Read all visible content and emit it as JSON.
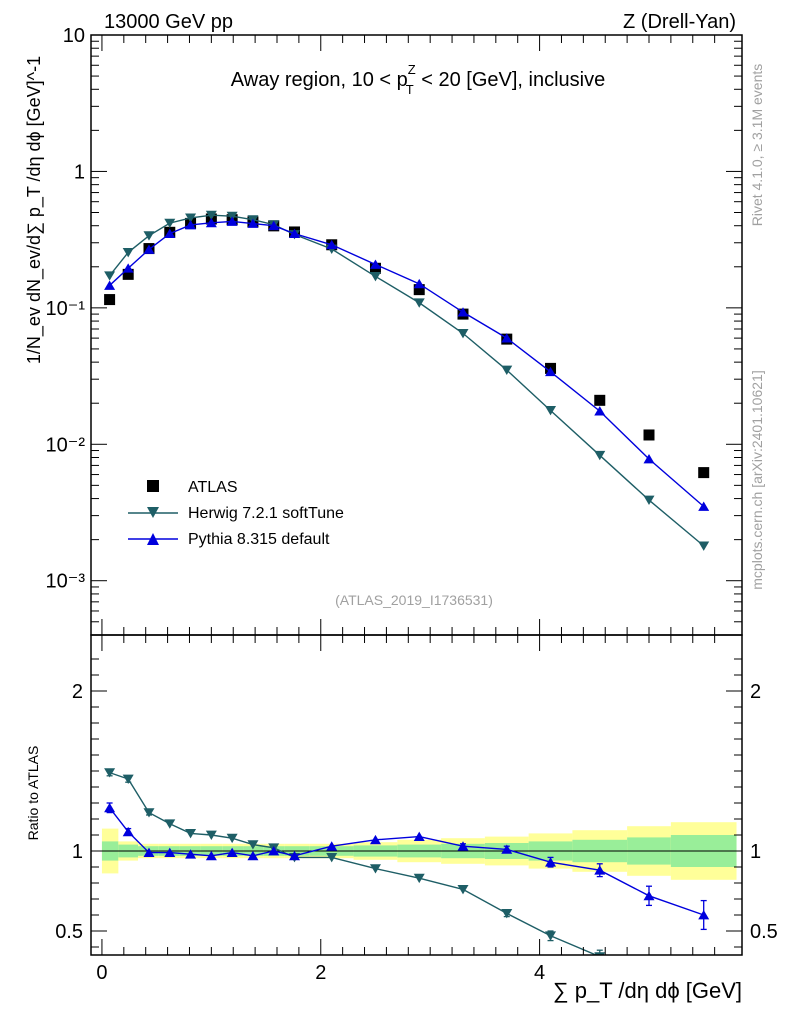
{
  "header": {
    "left": "13000 GeV pp",
    "right": "Z (Drell-Yan)"
  },
  "side_labels": {
    "rivet": "Rivet 4.1.0, ≥ 3.1M events",
    "mcplots": "mcplots.cern.ch [arXiv:2401.10621]"
  },
  "analysis_id": "(ATLAS_2019_I1736531)",
  "colors": {
    "atlas": "#000000",
    "herwig": "#1e5e66",
    "pythia": "#0000dd",
    "band_inner": "#99ee99",
    "band_outer": "#ffff99"
  },
  "chart_data": [
    {
      "type": "scatter",
      "title": "Away region, 10 < p_T^Z < 20 [GeV], inclusive",
      "title_parts": {
        "pre": "Away region, 10 < p",
        "sub": "T",
        "sup": "Z",
        "post": " < 20 [GeV], inclusive"
      },
      "xlabel": "∑ p_T /dη dϕ [GeV]",
      "ylabel": "1/N_ev dN_ev/d∑ p_T /dη dϕ [GeV]^-1",
      "yscale": "log",
      "ylim": [
        0.0004,
        10
      ],
      "xlim": [
        -0.1,
        5.85
      ],
      "y_ticks": [
        "10⁻³",
        "10⁻²",
        "10⁻¹",
        "1",
        "10"
      ],
      "legend_position": "bottom-left",
      "series": [
        {
          "name": "ATLAS",
          "marker": "square",
          "x": [
            0.07,
            0.24,
            0.43,
            0.62,
            0.81,
            1.0,
            1.19,
            1.38,
            1.57,
            1.76,
            2.1,
            2.5,
            2.9,
            3.3,
            3.7,
            4.1,
            4.55,
            5.0,
            5.5
          ],
          "y": [
            0.115,
            0.176,
            0.272,
            0.358,
            0.416,
            0.448,
            0.443,
            0.427,
            0.399,
            0.36,
            0.29,
            0.195,
            0.136,
            0.09,
            0.059,
            0.036,
            0.021,
            0.0117,
            0.0062
          ]
        },
        {
          "name": "Herwig 7.2.1 softTune",
          "marker": "triangle-down",
          "x": [
            0.07,
            0.24,
            0.43,
            0.62,
            0.81,
            1.0,
            1.19,
            1.38,
            1.57,
            1.76,
            2.1,
            2.5,
            2.9,
            3.3,
            3.7,
            4.1,
            4.55,
            5.0,
            5.5
          ],
          "y": [
            0.172,
            0.255,
            0.338,
            0.418,
            0.456,
            0.478,
            0.47,
            0.443,
            0.407,
            0.345,
            0.27,
            0.17,
            0.109,
            0.065,
            0.035,
            0.0177,
            0.0083,
            0.0039,
            0.0018
          ]
        },
        {
          "name": "Pythia 8.315 default",
          "marker": "triangle-up",
          "x": [
            0.07,
            0.24,
            0.43,
            0.62,
            0.81,
            1.0,
            1.19,
            1.38,
            1.57,
            1.76,
            2.1,
            2.5,
            2.9,
            3.3,
            3.7,
            4.1,
            4.55,
            5.0,
            5.5
          ],
          "y": [
            0.146,
            0.195,
            0.268,
            0.35,
            0.405,
            0.42,
            0.43,
            0.415,
            0.4,
            0.35,
            0.29,
            0.208,
            0.15,
            0.093,
            0.06,
            0.034,
            0.0175,
            0.0078,
            0.0035
          ]
        }
      ]
    },
    {
      "type": "line",
      "title": "",
      "xlabel": "∑ p_T /dη dϕ [GeV]",
      "ylabel": "Ratio to ATLAS",
      "ylim": [
        0.35,
        2.35
      ],
      "xlim": [
        -0.1,
        5.85
      ],
      "x_ticks": [
        "0",
        "2",
        "4"
      ],
      "y_ticks": [
        "0.5",
        "1",
        "2"
      ],
      "bands": {
        "edges": [
          0.0,
          0.15,
          0.33,
          0.52,
          0.71,
          0.9,
          1.1,
          1.29,
          1.48,
          1.67,
          1.9,
          2.3,
          2.7,
          3.1,
          3.5,
          3.9,
          4.3,
          4.8,
          5.2,
          5.8
        ],
        "inner_lo": [
          0.94,
          0.96,
          0.97,
          0.97,
          0.97,
          0.97,
          0.97,
          0.97,
          0.97,
          0.97,
          0.97,
          0.965,
          0.96,
          0.955,
          0.95,
          0.94,
          0.93,
          0.915,
          0.9
        ],
        "inner_hi": [
          1.06,
          1.04,
          1.03,
          1.03,
          1.03,
          1.03,
          1.03,
          1.03,
          1.03,
          1.03,
          1.03,
          1.035,
          1.04,
          1.045,
          1.05,
          1.06,
          1.07,
          1.085,
          1.1
        ],
        "outer_lo": [
          0.86,
          0.94,
          0.955,
          0.955,
          0.955,
          0.955,
          0.955,
          0.955,
          0.955,
          0.955,
          0.955,
          0.945,
          0.93,
          0.92,
          0.91,
          0.89,
          0.87,
          0.845,
          0.82
        ],
        "outer_hi": [
          1.14,
          1.06,
          1.045,
          1.045,
          1.045,
          1.045,
          1.045,
          1.045,
          1.045,
          1.045,
          1.045,
          1.055,
          1.07,
          1.08,
          1.09,
          1.11,
          1.13,
          1.155,
          1.18
        ]
      },
      "series": [
        {
          "name": "Herwig 7.2.1 softTune",
          "marker": "triangle-down",
          "x": [
            0.07,
            0.24,
            0.43,
            0.62,
            0.81,
            1.0,
            1.19,
            1.38,
            1.57,
            1.76,
            2.1,
            2.5,
            2.9,
            3.3,
            3.7,
            4.1,
            4.55
          ],
          "y": [
            1.49,
            1.45,
            1.24,
            1.17,
            1.11,
            1.1,
            1.08,
            1.04,
            1.02,
            0.96,
            0.96,
            0.89,
            0.83,
            0.76,
            0.61,
            0.47,
            0.34
          ],
          "err": [
            0.02,
            0.02,
            0.015,
            0.01,
            0.01,
            0.01,
            0.01,
            0.01,
            0.01,
            0.01,
            0.01,
            0.01,
            0.01,
            0.01,
            0.02,
            0.03,
            0.04
          ]
        },
        {
          "name": "Pythia 8.315 default",
          "marker": "triangle-up",
          "x": [
            0.07,
            0.24,
            0.43,
            0.62,
            0.81,
            1.0,
            1.19,
            1.38,
            1.57,
            1.76,
            2.1,
            2.5,
            2.9,
            3.3,
            3.7,
            4.1,
            4.55,
            5.0,
            5.5
          ],
          "y": [
            1.27,
            1.12,
            0.99,
            0.99,
            0.98,
            0.97,
            0.99,
            0.97,
            1.0,
            0.97,
            1.03,
            1.07,
            1.09,
            1.03,
            1.01,
            0.93,
            0.88,
            0.72,
            0.6
          ],
          "err": [
            0.03,
            0.02,
            0.01,
            0.01,
            0.01,
            0.01,
            0.01,
            0.01,
            0.01,
            0.01,
            0.01,
            0.01,
            0.01,
            0.015,
            0.02,
            0.03,
            0.04,
            0.06,
            0.09
          ]
        }
      ]
    }
  ]
}
